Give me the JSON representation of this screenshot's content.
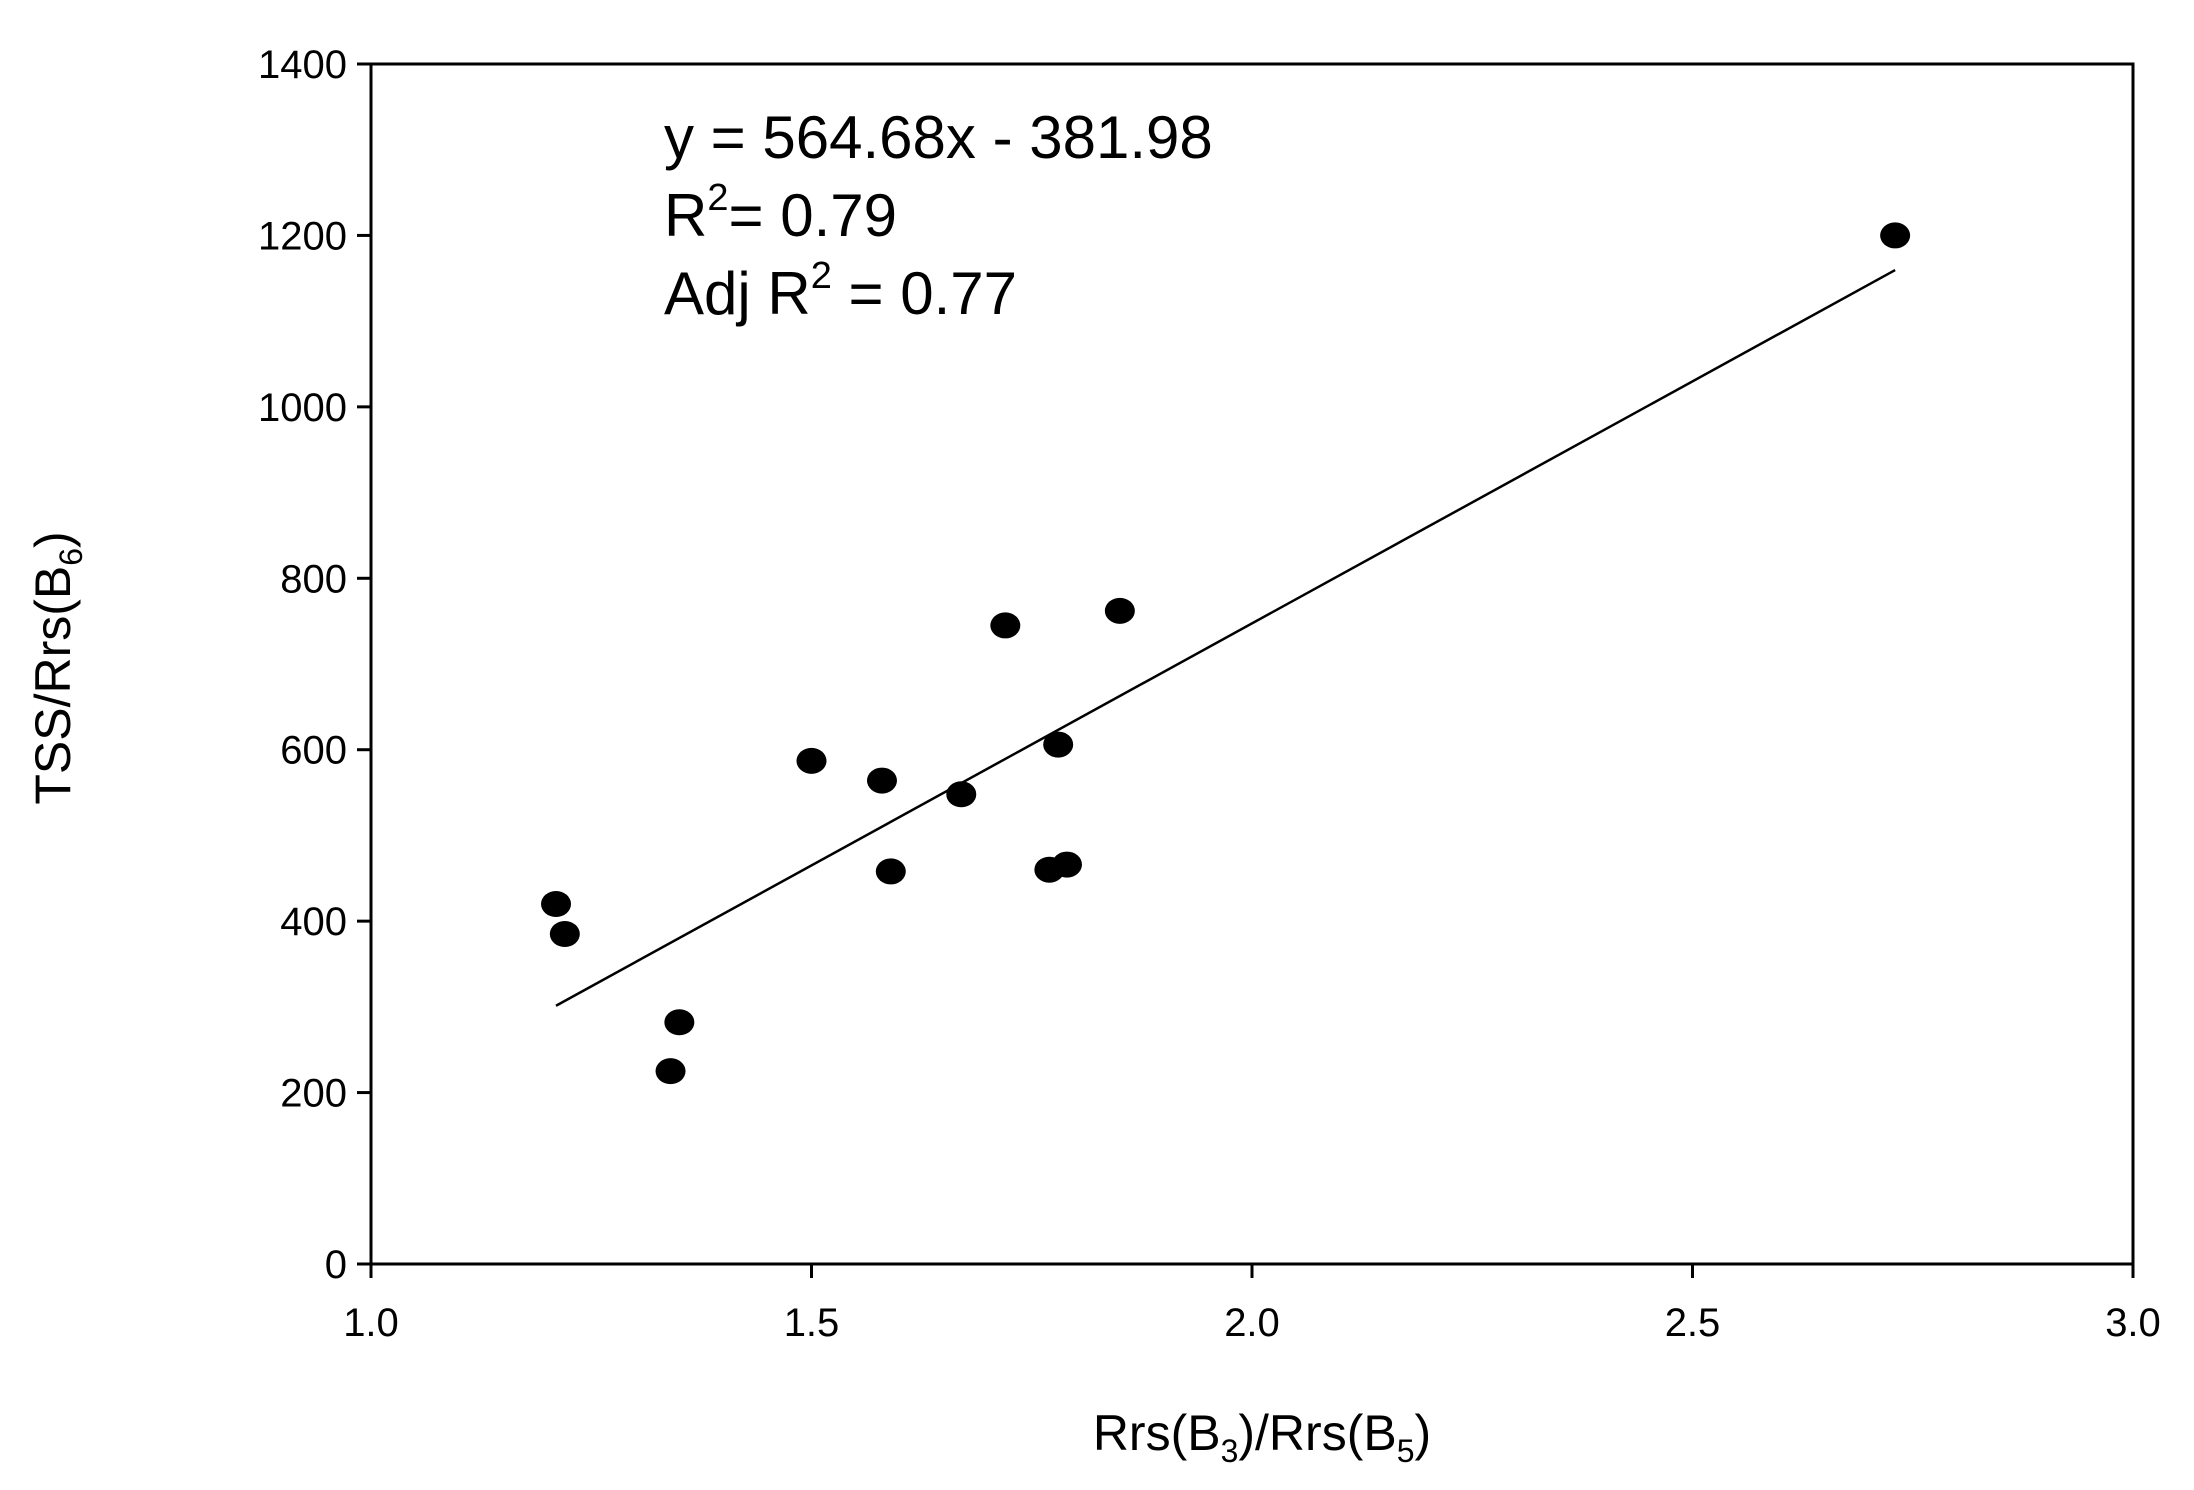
{
  "chart_data": {
    "type": "scatter",
    "xlabel": {
      "base": "Rrs(B",
      "sub1": "3",
      "mid": ")/Rrs(B",
      "sub2": "5",
      "end": ")"
    },
    "ylabel": {
      "base": "TSS/Rrs(B",
      "sub": "6",
      "end": ")"
    },
    "xlim": [
      1.0,
      3.0
    ],
    "ylim": [
      0,
      1400
    ],
    "xticks": [
      "1.0",
      "1.5",
      "2.0",
      "2.5",
      "3.0"
    ],
    "yticks": [
      "0",
      "200",
      "400",
      "600",
      "800",
      "1000",
      "1200",
      "1400"
    ],
    "grid": false,
    "points": [
      {
        "x": 1.21,
        "y": 420
      },
      {
        "x": 1.22,
        "y": 385
      },
      {
        "x": 1.34,
        "y": 225
      },
      {
        "x": 1.35,
        "y": 282
      },
      {
        "x": 1.5,
        "y": 587
      },
      {
        "x": 1.58,
        "y": 564
      },
      {
        "x": 1.59,
        "y": 458
      },
      {
        "x": 1.67,
        "y": 548
      },
      {
        "x": 1.72,
        "y": 745
      },
      {
        "x": 1.77,
        "y": 460
      },
      {
        "x": 1.78,
        "y": 606
      },
      {
        "x": 1.79,
        "y": 466
      },
      {
        "x": 1.85,
        "y": 762
      },
      {
        "x": 2.73,
        "y": 1200
      }
    ],
    "regression": {
      "slope": 564.68,
      "intercept": -381.98,
      "x_range": [
        1.21,
        2.73
      ]
    },
    "annotations": {
      "equation": "y = 564.68x -  381.98",
      "r2_prefix": "R",
      "r2_sup": "2",
      "r2_value": "= 0.79",
      "adj_prefix": "Adj R",
      "adj_sup": "2",
      "adj_value": " = 0.77"
    }
  }
}
